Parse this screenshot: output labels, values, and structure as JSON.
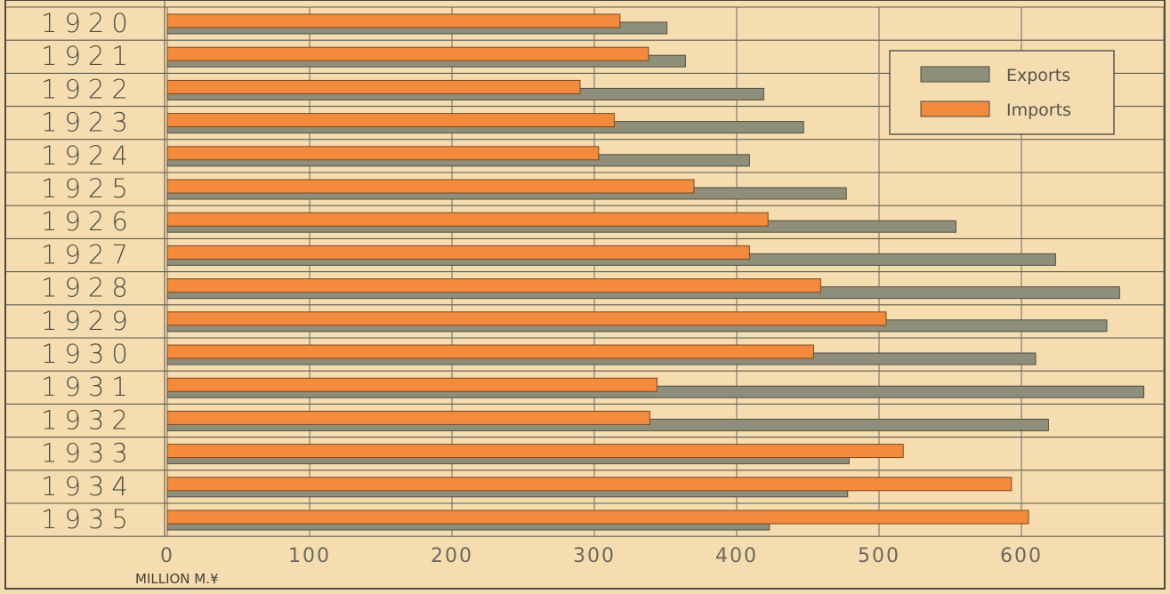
{
  "chart_data": {
    "type": "bar",
    "orientation": "horizontal",
    "categories": [
      "1920",
      "1921",
      "1922",
      "1923",
      "1924",
      "1925",
      "1926",
      "1927",
      "1928",
      "1929",
      "1930",
      "1931",
      "1932",
      "1933",
      "1934",
      "1935"
    ],
    "series": [
      {
        "name": "Exports",
        "color": "#8e8f7a",
        "values": [
          351,
          364,
          419,
          447,
          409,
          477,
          554,
          624,
          669,
          660,
          610,
          686,
          619,
          479,
          478,
          423
        ]
      },
      {
        "name": "Imports",
        "color": "#f48a3c",
        "values": [
          318,
          338,
          290,
          314,
          303,
          370,
          422,
          409,
          459,
          505,
          454,
          344,
          339,
          517,
          593,
          605
        ]
      }
    ],
    "xlabel": "MILLION M.¥",
    "xlim": [
      0,
      700
    ],
    "xticks": [
      "0",
      "100",
      "200",
      "300",
      "400",
      "500",
      "600"
    ],
    "grid": true,
    "legend_position": "top-right"
  }
}
